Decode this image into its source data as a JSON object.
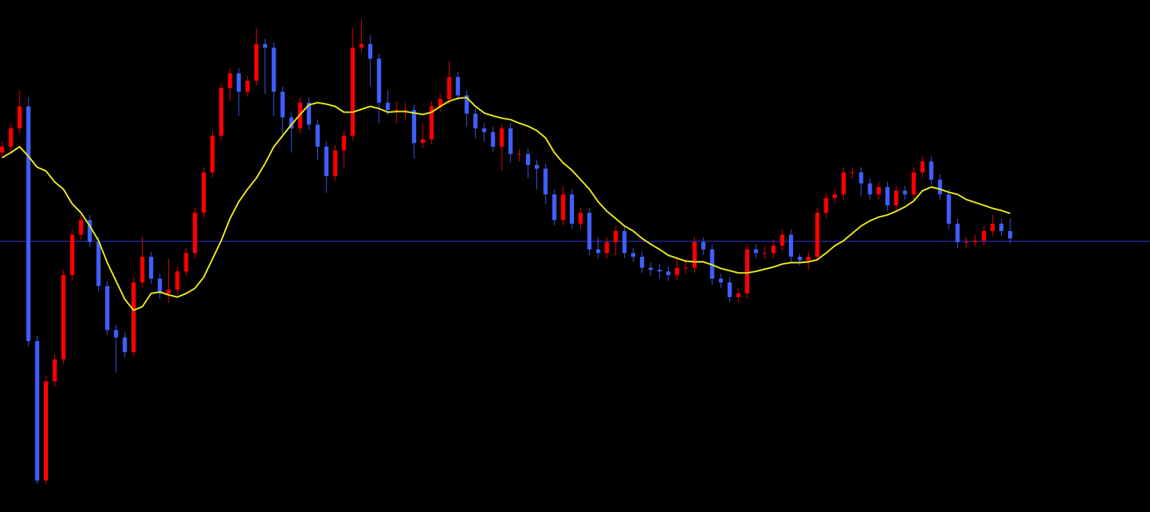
{
  "chart_data": {
    "type": "candlestick",
    "background": "#000000",
    "up_color": "#ff0000",
    "down_color": "#3f5fff",
    "ylim": [
      0,
      698
    ],
    "open": [
      490,
      498,
      523,
      553,
      233,
      43,
      178,
      208,
      323,
      378,
      398,
      368,
      308,
      248,
      238,
      218,
      313,
      348,
      318,
      298,
      303,
      328,
      353,
      408,
      463,
      513,
      578,
      598,
      573,
      588,
      638,
      633,
      573,
      538,
      523,
      558,
      528,
      498,
      458,
      493,
      513,
      633,
      638,
      618,
      558,
      548,
      548,
      548,
      503,
      508,
      553,
      563,
      593,
      568,
      543,
      523,
      518,
      498,
      523,
      488,
      488,
      473,
      468,
      433,
      398,
      433,
      393,
      408,
      358,
      353,
      368,
      383,
      353,
      348,
      333,
      330,
      328,
      323,
      333,
      333,
      368,
      358,
      318,
      313,
      293,
      298,
      358,
      353,
      353,
      363,
      378,
      348,
      343,
      348,
      408,
      428,
      433,
      463,
      463,
      448,
      433,
      443,
      418,
      438,
      433,
      463,
      478,
      453,
      433,
      393,
      368,
      368,
      370,
      383,
      393,
      383
    ],
    "high": [
      505,
      530,
      575,
      565,
      240,
      185,
      215,
      330,
      385,
      405,
      405,
      375,
      315,
      255,
      245,
      320,
      375,
      355,
      325,
      345,
      335,
      360,
      415,
      470,
      520,
      585,
      605,
      605,
      595,
      660,
      645,
      640,
      580,
      545,
      565,
      565,
      535,
      505,
      500,
      520,
      660,
      672,
      650,
      625,
      575,
      560,
      558,
      555,
      530,
      560,
      570,
      615,
      600,
      575,
      550,
      530,
      525,
      530,
      530,
      495,
      495,
      480,
      475,
      440,
      445,
      440,
      415,
      415,
      375,
      375,
      390,
      390,
      360,
      355,
      340,
      338,
      335,
      345,
      345,
      375,
      375,
      365,
      325,
      320,
      305,
      365,
      365,
      362,
      372,
      385,
      385,
      352,
      355,
      415,
      435,
      440,
      470,
      470,
      470,
      455,
      450,
      450,
      445,
      445,
      470,
      485,
      485,
      460,
      440,
      400,
      375,
      378,
      390,
      405,
      400,
      400
    ],
    "low": [
      483,
      491,
      516,
      226,
      38,
      38,
      171,
      201,
      316,
      371,
      361,
      301,
      241,
      190,
      211,
      211,
      306,
      311,
      291,
      285,
      296,
      321,
      346,
      401,
      456,
      506,
      560,
      540,
      566,
      581,
      570,
      540,
      510,
      490,
      516,
      521,
      480,
      435,
      451,
      470,
      506,
      626,
      580,
      530,
      541,
      530,
      535,
      482,
      496,
      501,
      546,
      556,
      561,
      525,
      510,
      505,
      491,
      465,
      476,
      478,
      455,
      440,
      420,
      391,
      391,
      386,
      386,
      350,
      346,
      346,
      350,
      346,
      341,
      326,
      322,
      318,
      315,
      316,
      325,
      326,
      350,
      310,
      305,
      286,
      286,
      291,
      346,
      345,
      346,
      356,
      341,
      336,
      330,
      341,
      401,
      421,
      426,
      455,
      430,
      426,
      426,
      410,
      411,
      426,
      426,
      456,
      446,
      426,
      386,
      360,
      360,
      362,
      363,
      376,
      376,
      366
    ],
    "close": [
      498,
      523,
      553,
      233,
      43,
      178,
      208,
      323,
      378,
      398,
      368,
      308,
      248,
      238,
      218,
      313,
      348,
      318,
      298,
      303,
      328,
      353,
      408,
      463,
      513,
      578,
      598,
      573,
      588,
      638,
      633,
      573,
      538,
      523,
      558,
      528,
      498,
      458,
      493,
      513,
      633,
      638,
      618,
      558,
      548,
      548,
      548,
      503,
      508,
      553,
      563,
      593,
      568,
      543,
      523,
      518,
      498,
      523,
      488,
      488,
      473,
      468,
      433,
      398,
      433,
      393,
      408,
      358,
      353,
      368,
      383,
      353,
      348,
      333,
      330,
      328,
      323,
      333,
      333,
      368,
      358,
      318,
      313,
      293,
      298,
      358,
      353,
      353,
      363,
      378,
      348,
      343,
      348,
      408,
      428,
      433,
      463,
      463,
      448,
      433,
      443,
      418,
      438,
      433,
      463,
      478,
      453,
      433,
      393,
      368,
      368,
      370,
      383,
      393,
      383,
      373
    ],
    "ma": {
      "color": "#e8e81c",
      "values": [
        483,
        490,
        498,
        485,
        470,
        465,
        450,
        440,
        420,
        408,
        390,
        370,
        340,
        315,
        290,
        275,
        280,
        298,
        300,
        296,
        293,
        298,
        305,
        320,
        345,
        370,
        400,
        423,
        440,
        455,
        475,
        498,
        513,
        528,
        542,
        555,
        558,
        556,
        553,
        545,
        545,
        549,
        553,
        550,
        545,
        546,
        546,
        544,
        542,
        545,
        553,
        560,
        564,
        565,
        553,
        544,
        540,
        537,
        535,
        530,
        526,
        520,
        510,
        490,
        476,
        466,
        453,
        440,
        423,
        410,
        400,
        390,
        383,
        373,
        365,
        358,
        350,
        346,
        342,
        341,
        341,
        337,
        332,
        329,
        326,
        326,
        328,
        331,
        334,
        338,
        340,
        340,
        341,
        344,
        353,
        363,
        370,
        380,
        390,
        397,
        402,
        405,
        410,
        416,
        424,
        438,
        443,
        440,
        436,
        433,
        426,
        422,
        418,
        414,
        411,
        407
      ]
    },
    "hline": {
      "value": 369,
      "color": "#3a3aff"
    }
  }
}
